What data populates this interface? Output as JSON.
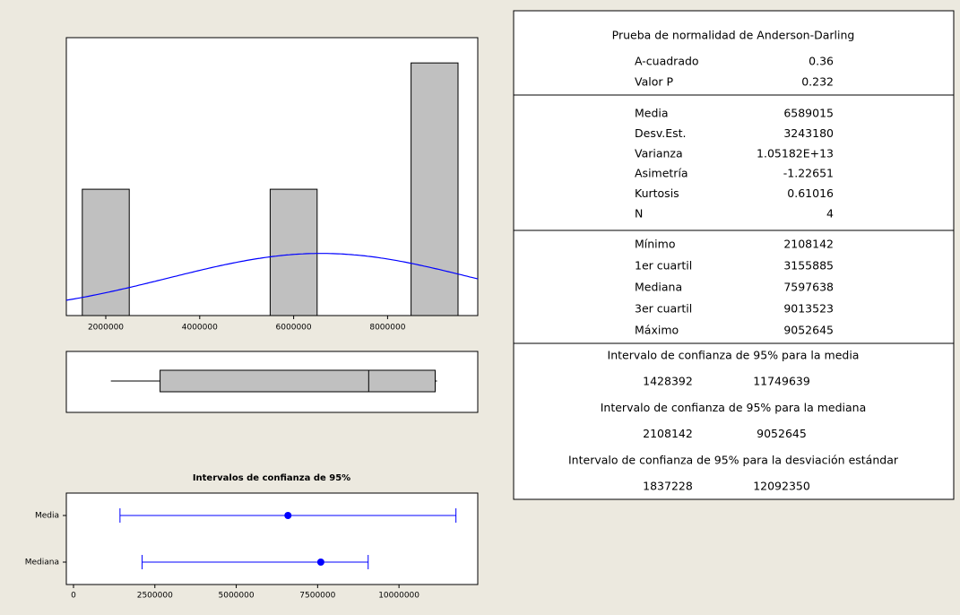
{
  "chart_data": [
    {
      "type": "histogram",
      "bins": [
        1500000,
        2500000,
        3500000,
        4500000,
        5500000,
        6500000,
        7500000,
        8500000,
        9500000
      ],
      "counts": [
        1,
        0,
        0,
        0,
        1,
        0,
        0,
        2
      ],
      "xlim": [
        1160000,
        9920000
      ],
      "xticks": [
        2000000,
        4000000,
        6000000,
        8000000
      ],
      "ylim": [
        0,
        2.2
      ],
      "color": "#c0c0c0",
      "curve_color": "#0000ff"
    },
    {
      "type": "box",
      "color": "#c0c0c0"
    },
    {
      "type": "interval",
      "title": "Intervalos de confianza de 95%",
      "categories": [
        "Media",
        "Mediana"
      ],
      "xlim": [
        -220000,
        12420000
      ],
      "xticks": [
        0,
        2500000,
        5000000,
        7500000,
        10000000
      ],
      "color": "#0000ff"
    }
  ],
  "summary": {
    "normality": {
      "title": "Prueba de normalidad de Anderson-Darling",
      "rows": [
        {
          "label": "A-cuadrado",
          "value": 0.36
        },
        {
          "label": "Valor P",
          "value": 0.232
        }
      ]
    },
    "descriptive": {
      "rows": [
        {
          "label": "Media",
          "value": 6589015
        },
        {
          "label": "Desv.Est.",
          "value": 3243180
        },
        {
          "label": "Varianza",
          "value": 10518200000000,
          "value_label": "1.05182E+13"
        },
        {
          "label": "Asimetría",
          "value": -1.22651
        },
        {
          "label": "Kurtosis",
          "value": 0.61016
        },
        {
          "label": "N",
          "value": 4
        }
      ]
    },
    "quantiles": {
      "rows": [
        {
          "label": "Mínimo",
          "value": 2108142
        },
        {
          "label": "1er cuartil",
          "value": 3155885
        },
        {
          "label": "Mediana",
          "value": 7597638
        },
        {
          "label": "3er cuartil",
          "value": 9013523
        },
        {
          "label": "Máximo",
          "value": 9052645
        }
      ]
    },
    "intervals": [
      {
        "title": "Intervalo de confianza de 95% para la media",
        "low": 1428392,
        "high": 11749639
      },
      {
        "title": "Intervalo de confianza de 95% para la mediana",
        "low": 2108142,
        "high": 9052645
      },
      {
        "title": "Intervalo de confianza de 95% para la desviación estándar",
        "low": 1837228,
        "high": 12092350
      }
    ]
  }
}
